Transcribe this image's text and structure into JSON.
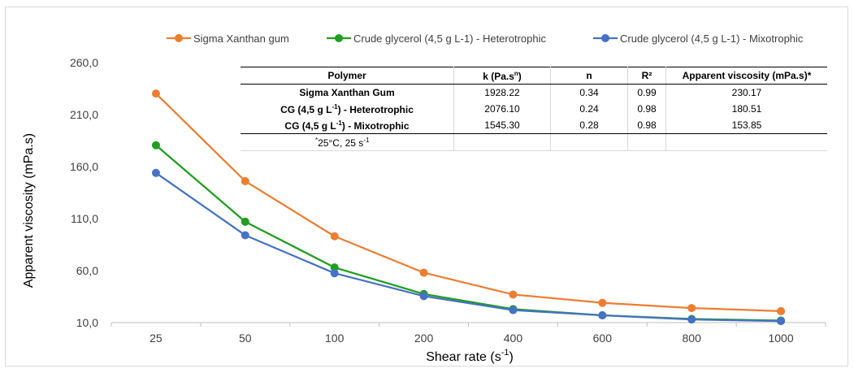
{
  "chart_data": {
    "type": "line",
    "categories": [
      "25",
      "50",
      "100",
      "200",
      "400",
      "600",
      "800",
      "1000"
    ],
    "series": [
      {
        "name": "Sigma Xanthan gum",
        "color": "#ed7d31",
        "values": [
          230.2,
          146.0,
          93.0,
          58.0,
          37.0,
          29.0,
          24.0,
          21.0
        ]
      },
      {
        "name": "Crude glycerol (4,5 g L-1) - Heterotrophic",
        "color": "#1f9e1f",
        "values": [
          180.5,
          107.0,
          63.0,
          37.5,
          23.0,
          17.0,
          13.5,
          12.0
        ]
      },
      {
        "name": "Crude glycerol (4,5 g L-1) - Mixotrophic",
        "color": "#4472c4",
        "values": [
          153.9,
          94.0,
          57.5,
          35.5,
          22.0,
          17.0,
          13.0,
          11.5
        ]
      }
    ],
    "xlabel": "Shear rate (s-1)",
    "ylabel": "Apparent viscosity (mPa.s)",
    "ylim": [
      10,
      260
    ],
    "yticks": [
      "10,0",
      "60,0",
      "110,0",
      "160,0",
      "210,0",
      "260,0"
    ],
    "grid": false,
    "legend_position": "top"
  },
  "table": {
    "headers": [
      "Polymer",
      "k (Pa.s",
      "n",
      "R²",
      "Apparent viscosity (mPa.s)*"
    ],
    "header_k_sup": "n",
    "header_k_suffix": ")",
    "rows": [
      {
        "polymer": "Sigma Xanthan Gum",
        "polymer_sup": "",
        "polymer_suffix": "",
        "k": "1928.22",
        "n": "0.34",
        "r2": "0.99",
        "visc": "230.17"
      },
      {
        "polymer": "CG (4,5 g L",
        "polymer_sup": "-1",
        "polymer_suffix": ") - Heterotrophic",
        "k": "2076.10",
        "n": "0.24",
        "r2": "0.98",
        "visc": "180.51"
      },
      {
        "polymer": "CG (4,5 g L",
        "polymer_sup": "-1",
        "polymer_suffix": ") - Mixotrophic",
        "k": "1545.30",
        "n": "0.28",
        "r2": "0.98",
        "visc": "153.85"
      }
    ],
    "footnote_mark": "*",
    "footnote": "25°C, 25 s",
    "footnote_sup": "-1"
  }
}
